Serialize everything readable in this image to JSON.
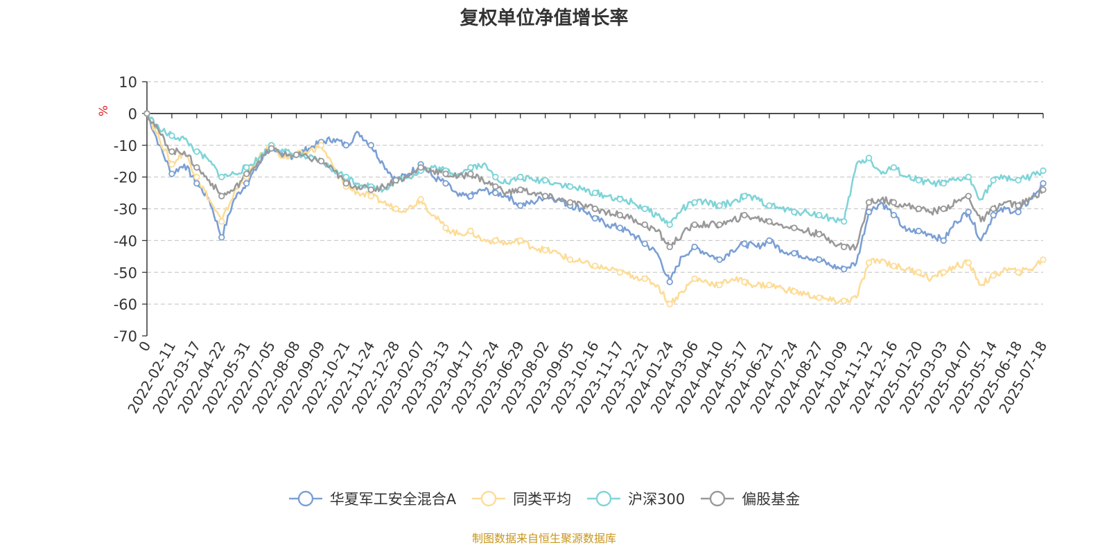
{
  "chart_data": {
    "type": "line",
    "title": "复权单位净值增长率",
    "ylabel": "%",
    "ylim": [
      -70,
      10
    ],
    "yticks": [
      10,
      0,
      -10,
      -20,
      -30,
      -40,
      -50,
      -60,
      -70
    ],
    "xtick_labels": [
      "0",
      "2022-02-11",
      "2022-03-17",
      "2022-04-22",
      "2022-05-31",
      "2022-07-05",
      "2022-08-08",
      "2022-09-09",
      "2022-10-21",
      "2022-11-24",
      "2022-12-28",
      "2023-02-07",
      "2023-03-13",
      "2023-04-17",
      "2023-05-24",
      "2023-06-29",
      "2023-08-02",
      "2023-09-05",
      "2023-10-16",
      "2023-11-17",
      "2023-12-21",
      "2024-01-24",
      "2024-03-06",
      "2024-04-10",
      "2024-05-17",
      "2024-06-21",
      "2024-07-24",
      "2024-08-27",
      "2024-10-09",
      "2024-11-12",
      "2024-12-16",
      "2025-01-20",
      "2025-03-03",
      "2025-04-07",
      "2025-05-14",
      "2025-06-18",
      "2025-07-18"
    ],
    "x_points": [
      0,
      0.5,
      1,
      1.5,
      2,
      2.5,
      3,
      3.5,
      4,
      4.5,
      5,
      5.5,
      6,
      6.5,
      7,
      7.5,
      8,
      8.5,
      9,
      9.5,
      10,
      10.5,
      11,
      11.5,
      12,
      12.5,
      13,
      13.5,
      14,
      14.5,
      15,
      15.5,
      16,
      16.5,
      17,
      17.5,
      18,
      18.5,
      19,
      19.5,
      20,
      20.5,
      21,
      21.5,
      22,
      22.5,
      23,
      23.5,
      24,
      24.5,
      25,
      25.5,
      26,
      26.5,
      27,
      27.5,
      28,
      28.5,
      29,
      29.5,
      30,
      30.5,
      31,
      31.5,
      32,
      32.5,
      33,
      33.5,
      34,
      34.5,
      35,
      35.5,
      36
    ],
    "legend_position": "bottom",
    "grid": true,
    "series": [
      {
        "name": "华夏军工安全混合A",
        "color": "#7a9fd4",
        "values": [
          0,
          -10,
          -19,
          -16,
          -22,
          -27,
          -39,
          -27,
          -22,
          -16,
          -10,
          -14,
          -13,
          -11,
          -9,
          -8,
          -10,
          -6,
          -10,
          -16,
          -21,
          -19,
          -16,
          -20,
          -22,
          -26,
          -26,
          -24,
          -25,
          -26,
          -29,
          -28,
          -26,
          -27,
          -29,
          -30,
          -33,
          -35,
          -36,
          -38,
          -41,
          -44,
          -53,
          -45,
          -42,
          -44,
          -46,
          -43,
          -41,
          -42,
          -40,
          -43,
          -44,
          -45,
          -46,
          -48,
          -49,
          -47,
          -31,
          -28,
          -32,
          -37,
          -37,
          -38,
          -40,
          -34,
          -31,
          -40,
          -32,
          -30,
          -31,
          -27,
          -22
        ]
      },
      {
        "name": "同类平均",
        "color": "#fddc97",
        "values": [
          0,
          -8,
          -16,
          -12,
          -20,
          -27,
          -34,
          -25,
          -20,
          -14,
          -10,
          -14,
          -13,
          -12,
          -10,
          -17,
          -23,
          -25,
          -26,
          -28,
          -30,
          -30,
          -27,
          -32,
          -36,
          -38,
          -37,
          -40,
          -40,
          -41,
          -40,
          -42,
          -43,
          -44,
          -46,
          -47,
          -48,
          -49,
          -50,
          -51,
          -52,
          -54,
          -60,
          -56,
          -52,
          -53,
          -54,
          -52,
          -53,
          -54,
          -54,
          -55,
          -56,
          -57,
          -58,
          -59,
          -59,
          -58,
          -47,
          -46,
          -48,
          -49,
          -50,
          -52,
          -50,
          -48,
          -47,
          -54,
          -51,
          -49,
          -50,
          -49,
          -46
        ]
      },
      {
        "name": "沪深300",
        "color": "#7fd4d8",
        "values": [
          0,
          -5,
          -7,
          -8,
          -12,
          -15,
          -20,
          -19,
          -17,
          -14,
          -10,
          -12,
          -13,
          -14,
          -15,
          -18,
          -20,
          -22,
          -23,
          -24,
          -21,
          -20,
          -18,
          -17,
          -18,
          -19,
          -17,
          -16,
          -20,
          -22,
          -20,
          -21,
          -21,
          -22,
          -23,
          -24,
          -25,
          -26,
          -27,
          -28,
          -30,
          -32,
          -35,
          -30,
          -28,
          -28,
          -29,
          -28,
          -26,
          -27,
          -29,
          -30,
          -31,
          -31,
          -32,
          -33,
          -34,
          -16,
          -14,
          -19,
          -17,
          -20,
          -21,
          -22,
          -22,
          -21,
          -20,
          -27,
          -21,
          -20,
          -21,
          -20,
          -18
        ]
      },
      {
        "name": "偏股基金",
        "color": "#999999",
        "values": [
          0,
          -6,
          -12,
          -12,
          -17,
          -21,
          -26,
          -24,
          -19,
          -15,
          -11,
          -13,
          -13,
          -14,
          -15,
          -18,
          -22,
          -23,
          -24,
          -23,
          -21,
          -20,
          -17,
          -18,
          -19,
          -20,
          -19,
          -21,
          -23,
          -25,
          -24,
          -25,
          -26,
          -27,
          -28,
          -29,
          -30,
          -31,
          -32,
          -33,
          -35,
          -37,
          -42,
          -38,
          -35,
          -35,
          -35,
          -34,
          -32,
          -33,
          -34,
          -35,
          -36,
          -37,
          -38,
          -40,
          -42,
          -42,
          -28,
          -27,
          -28,
          -29,
          -30,
          -31,
          -30,
          -28,
          -26,
          -34,
          -30,
          -28,
          -29,
          -27,
          -24
        ]
      }
    ]
  },
  "footer": {
    "source": "制图数据来自恒生聚源数据库"
  }
}
